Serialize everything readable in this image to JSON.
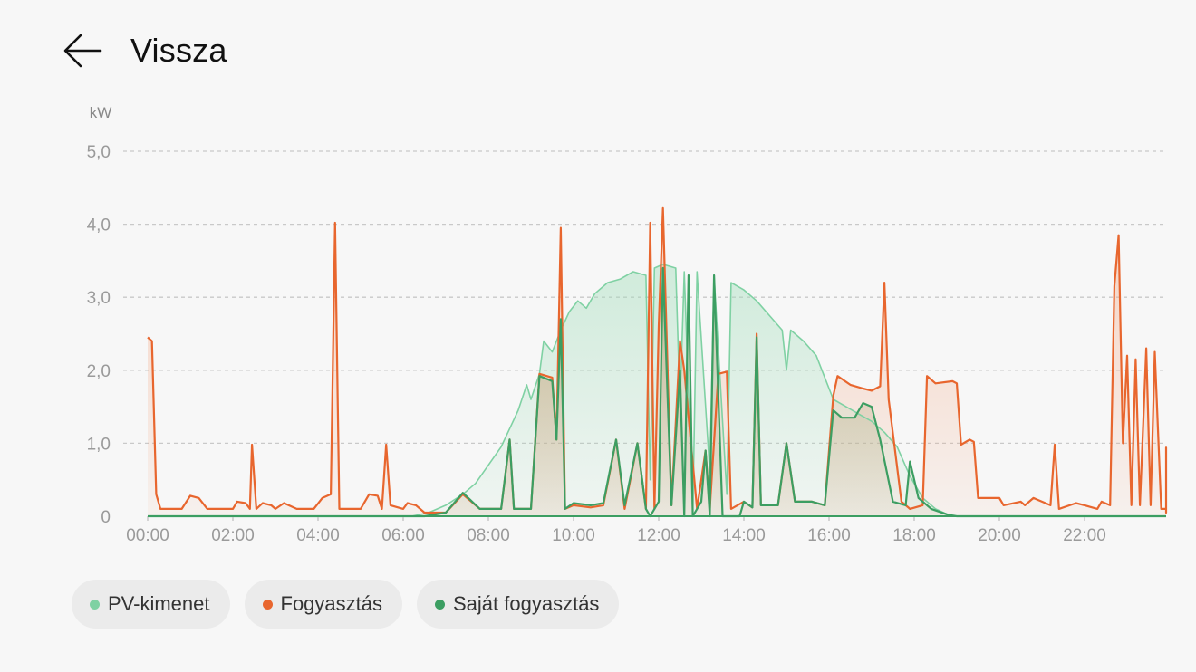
{
  "header": {
    "back_icon": "arrow-left-icon",
    "title": "Vissza"
  },
  "legend": [
    {
      "label": "PV-kimenet",
      "color": "#7fd1a3"
    },
    {
      "label": "Fogyasztás",
      "color": "#e8662e"
    },
    {
      "label": "Saját fogyasztás",
      "color": "#3c9e62"
    }
  ],
  "chart_data": {
    "type": "line",
    "ylabel": "kW",
    "ylim": [
      0,
      5
    ],
    "yticks": [
      "0",
      "1,0",
      "2,0",
      "3,0",
      "4,0",
      "5,0"
    ],
    "ytick_values": [
      0,
      1,
      2,
      3,
      4,
      5
    ],
    "xlim": [
      0,
      24
    ],
    "xticks": [
      "00:00",
      "02:00",
      "04:00",
      "06:00",
      "08:00",
      "10:00",
      "12:00",
      "14:00",
      "16:00",
      "18:00",
      "20:00",
      "22:00"
    ],
    "xtick_values": [
      0,
      2,
      4,
      6,
      8,
      10,
      12,
      14,
      16,
      18,
      20,
      22
    ],
    "grid": true,
    "series": [
      {
        "name": "PV-kimenet",
        "color": "#7fd1a3",
        "points": [
          [
            0,
            0
          ],
          [
            6.2,
            0
          ],
          [
            6.6,
            0.05
          ],
          [
            7.0,
            0.15
          ],
          [
            7.4,
            0.3
          ],
          [
            7.7,
            0.45
          ],
          [
            8.0,
            0.7
          ],
          [
            8.3,
            0.95
          ],
          [
            8.5,
            1.2
          ],
          [
            8.7,
            1.45
          ],
          [
            8.9,
            1.8
          ],
          [
            9.0,
            1.6
          ],
          [
            9.2,
            1.95
          ],
          [
            9.3,
            2.4
          ],
          [
            9.5,
            2.25
          ],
          [
            9.7,
            2.55
          ],
          [
            9.9,
            2.8
          ],
          [
            10.1,
            2.95
          ],
          [
            10.3,
            2.85
          ],
          [
            10.5,
            3.05
          ],
          [
            10.8,
            3.2
          ],
          [
            11.1,
            3.25
          ],
          [
            11.4,
            3.35
          ],
          [
            11.7,
            3.3
          ],
          [
            11.8,
            0.5
          ],
          [
            11.9,
            3.4
          ],
          [
            12.1,
            3.45
          ],
          [
            12.4,
            3.4
          ],
          [
            12.5,
            1.5
          ],
          [
            12.6,
            3.35
          ],
          [
            12.8,
            0
          ],
          [
            12.9,
            3.35
          ],
          [
            13.2,
            0.6
          ],
          [
            13.3,
            3.3
          ],
          [
            13.6,
            0.3
          ],
          [
            13.7,
            3.2
          ],
          [
            14.0,
            3.1
          ],
          [
            14.3,
            2.95
          ],
          [
            14.6,
            2.75
          ],
          [
            14.9,
            2.55
          ],
          [
            15.0,
            2.0
          ],
          [
            15.1,
            2.55
          ],
          [
            15.4,
            2.4
          ],
          [
            15.7,
            2.2
          ],
          [
            15.9,
            1.9
          ],
          [
            16.1,
            1.6
          ],
          [
            16.4,
            1.5
          ],
          [
            16.7,
            1.4
          ],
          [
            17.0,
            1.3
          ],
          [
            17.3,
            1.15
          ],
          [
            17.6,
            0.95
          ],
          [
            17.9,
            0.55
          ],
          [
            18.2,
            0.25
          ],
          [
            18.5,
            0.1
          ],
          [
            18.8,
            0.02
          ],
          [
            19.0,
            0
          ],
          [
            24,
            0
          ]
        ]
      },
      {
        "name": "Fogyasztás",
        "color": "#e8662e",
        "points": [
          [
            0,
            2.45
          ],
          [
            0.1,
            2.4
          ],
          [
            0.2,
            0.3
          ],
          [
            0.3,
            0.1
          ],
          [
            0.8,
            0.1
          ],
          [
            1.0,
            0.28
          ],
          [
            1.2,
            0.25
          ],
          [
            1.4,
            0.1
          ],
          [
            2.0,
            0.1
          ],
          [
            2.1,
            0.2
          ],
          [
            2.3,
            0.18
          ],
          [
            2.4,
            0.1
          ],
          [
            2.45,
            0.98
          ],
          [
            2.55,
            0.1
          ],
          [
            2.7,
            0.18
          ],
          [
            2.9,
            0.15
          ],
          [
            3.0,
            0.1
          ],
          [
            3.2,
            0.18
          ],
          [
            3.5,
            0.1
          ],
          [
            3.9,
            0.1
          ],
          [
            4.1,
            0.25
          ],
          [
            4.3,
            0.3
          ],
          [
            4.4,
            4.02
          ],
          [
            4.5,
            0.1
          ],
          [
            5.0,
            0.1
          ],
          [
            5.2,
            0.3
          ],
          [
            5.4,
            0.28
          ],
          [
            5.5,
            0.1
          ],
          [
            5.6,
            0.98
          ],
          [
            5.7,
            0.15
          ],
          [
            6.0,
            0.1
          ],
          [
            6.1,
            0.18
          ],
          [
            6.3,
            0.15
          ],
          [
            6.5,
            0.05
          ],
          [
            7.0,
            0.05
          ],
          [
            7.4,
            0.3
          ],
          [
            7.8,
            0.1
          ],
          [
            8.3,
            0.1
          ],
          [
            8.5,
            1.05
          ],
          [
            8.6,
            0.1
          ],
          [
            9.0,
            0.1
          ],
          [
            9.2,
            1.95
          ],
          [
            9.5,
            1.9
          ],
          [
            9.6,
            1.05
          ],
          [
            9.7,
            3.95
          ],
          [
            9.8,
            0.1
          ],
          [
            10.0,
            0.15
          ],
          [
            10.4,
            0.12
          ],
          [
            10.7,
            0.15
          ],
          [
            11.0,
            1.05
          ],
          [
            11.2,
            0.1
          ],
          [
            11.5,
            1.0
          ],
          [
            11.7,
            0.1
          ],
          [
            11.8,
            4.02
          ],
          [
            11.9,
            0.1
          ],
          [
            12.0,
            2.6
          ],
          [
            12.1,
            4.22
          ],
          [
            12.3,
            0.15
          ],
          [
            12.5,
            2.4
          ],
          [
            12.6,
            2.0
          ],
          [
            12.9,
            0.1
          ],
          [
            13.1,
            0.9
          ],
          [
            13.2,
            0.1
          ],
          [
            13.4,
            1.95
          ],
          [
            13.6,
            1.98
          ],
          [
            13.7,
            0.1
          ],
          [
            14.0,
            0.2
          ],
          [
            14.2,
            0.12
          ],
          [
            14.3,
            2.5
          ],
          [
            14.4,
            0.15
          ],
          [
            14.8,
            0.15
          ],
          [
            15.0,
            1.0
          ],
          [
            15.2,
            0.2
          ],
          [
            15.6,
            0.2
          ],
          [
            15.9,
            0.15
          ],
          [
            16.1,
            1.65
          ],
          [
            16.2,
            1.92
          ],
          [
            16.5,
            1.8
          ],
          [
            16.8,
            1.75
          ],
          [
            17.0,
            1.72
          ],
          [
            17.2,
            1.78
          ],
          [
            17.3,
            3.2
          ],
          [
            17.4,
            1.6
          ],
          [
            17.7,
            0.2
          ],
          [
            17.9,
            0.1
          ],
          [
            18.2,
            0.15
          ],
          [
            18.3,
            1.92
          ],
          [
            18.5,
            1.82
          ],
          [
            18.9,
            1.85
          ],
          [
            19.0,
            1.82
          ],
          [
            19.1,
            0.98
          ],
          [
            19.3,
            1.05
          ],
          [
            19.4,
            1.02
          ],
          [
            19.5,
            0.25
          ],
          [
            20.0,
            0.25
          ],
          [
            20.1,
            0.15
          ],
          [
            20.5,
            0.2
          ],
          [
            20.6,
            0.15
          ],
          [
            20.8,
            0.25
          ],
          [
            21.0,
            0.2
          ],
          [
            21.2,
            0.15
          ],
          [
            21.3,
            0.98
          ],
          [
            21.4,
            0.1
          ],
          [
            21.8,
            0.18
          ],
          [
            22.0,
            0.15
          ],
          [
            22.3,
            0.1
          ],
          [
            22.4,
            0.2
          ],
          [
            22.6,
            0.15
          ],
          [
            22.7,
            3.15
          ],
          [
            22.8,
            3.85
          ],
          [
            22.9,
            1.0
          ],
          [
            23.0,
            2.2
          ],
          [
            23.1,
            0.15
          ],
          [
            23.2,
            2.15
          ],
          [
            23.3,
            0.15
          ],
          [
            23.45,
            2.3
          ],
          [
            23.55,
            0.15
          ],
          [
            23.65,
            2.25
          ],
          [
            23.8,
            0.1
          ],
          [
            24.2,
            0.1
          ],
          [
            24.4,
            0.05
          ],
          [
            24.5,
            0.3
          ],
          [
            24.6,
            0.2
          ],
          [
            24.7,
            0.1
          ],
          [
            24.8,
            0.94
          ],
          [
            24.9,
            0.93
          ]
        ]
      },
      {
        "name": "Saját fogyasztás",
        "color": "#3c9e62",
        "points": [
          [
            0,
            0
          ],
          [
            6.5,
            0
          ],
          [
            7.0,
            0.05
          ],
          [
            7.4,
            0.32
          ],
          [
            7.8,
            0.1
          ],
          [
            8.3,
            0.1
          ],
          [
            8.5,
            1.05
          ],
          [
            8.6,
            0.1
          ],
          [
            9.0,
            0.1
          ],
          [
            9.2,
            1.92
          ],
          [
            9.5,
            1.85
          ],
          [
            9.6,
            1.05
          ],
          [
            9.7,
            2.7
          ],
          [
            9.8,
            0.1
          ],
          [
            10.0,
            0.18
          ],
          [
            10.4,
            0.15
          ],
          [
            10.7,
            0.18
          ],
          [
            11.0,
            1.05
          ],
          [
            11.2,
            0.15
          ],
          [
            11.5,
            1.0
          ],
          [
            11.7,
            0.1
          ],
          [
            11.8,
            0
          ],
          [
            12.0,
            0.2
          ],
          [
            12.1,
            3.4
          ],
          [
            12.3,
            0.15
          ],
          [
            12.5,
            2.0
          ],
          [
            12.6,
            0
          ],
          [
            12.7,
            3.3
          ],
          [
            12.8,
            0
          ],
          [
            13.0,
            0.2
          ],
          [
            13.1,
            0.9
          ],
          [
            13.2,
            0
          ],
          [
            13.3,
            3.3
          ],
          [
            13.5,
            0
          ],
          [
            13.9,
            0
          ],
          [
            14.0,
            0.2
          ],
          [
            14.2,
            0.12
          ],
          [
            14.3,
            2.45
          ],
          [
            14.4,
            0.15
          ],
          [
            14.8,
            0.15
          ],
          [
            15.0,
            1.0
          ],
          [
            15.2,
            0.2
          ],
          [
            15.6,
            0.2
          ],
          [
            15.9,
            0.15
          ],
          [
            16.1,
            1.45
          ],
          [
            16.3,
            1.35
          ],
          [
            16.6,
            1.35
          ],
          [
            16.8,
            1.55
          ],
          [
            17.0,
            1.5
          ],
          [
            17.2,
            1.05
          ],
          [
            17.5,
            0.2
          ],
          [
            17.8,
            0.15
          ],
          [
            17.9,
            0.75
          ],
          [
            18.1,
            0.25
          ],
          [
            18.4,
            0.1
          ],
          [
            18.8,
            0.02
          ],
          [
            19.0,
            0
          ],
          [
            24.9,
            0
          ]
        ]
      }
    ]
  }
}
